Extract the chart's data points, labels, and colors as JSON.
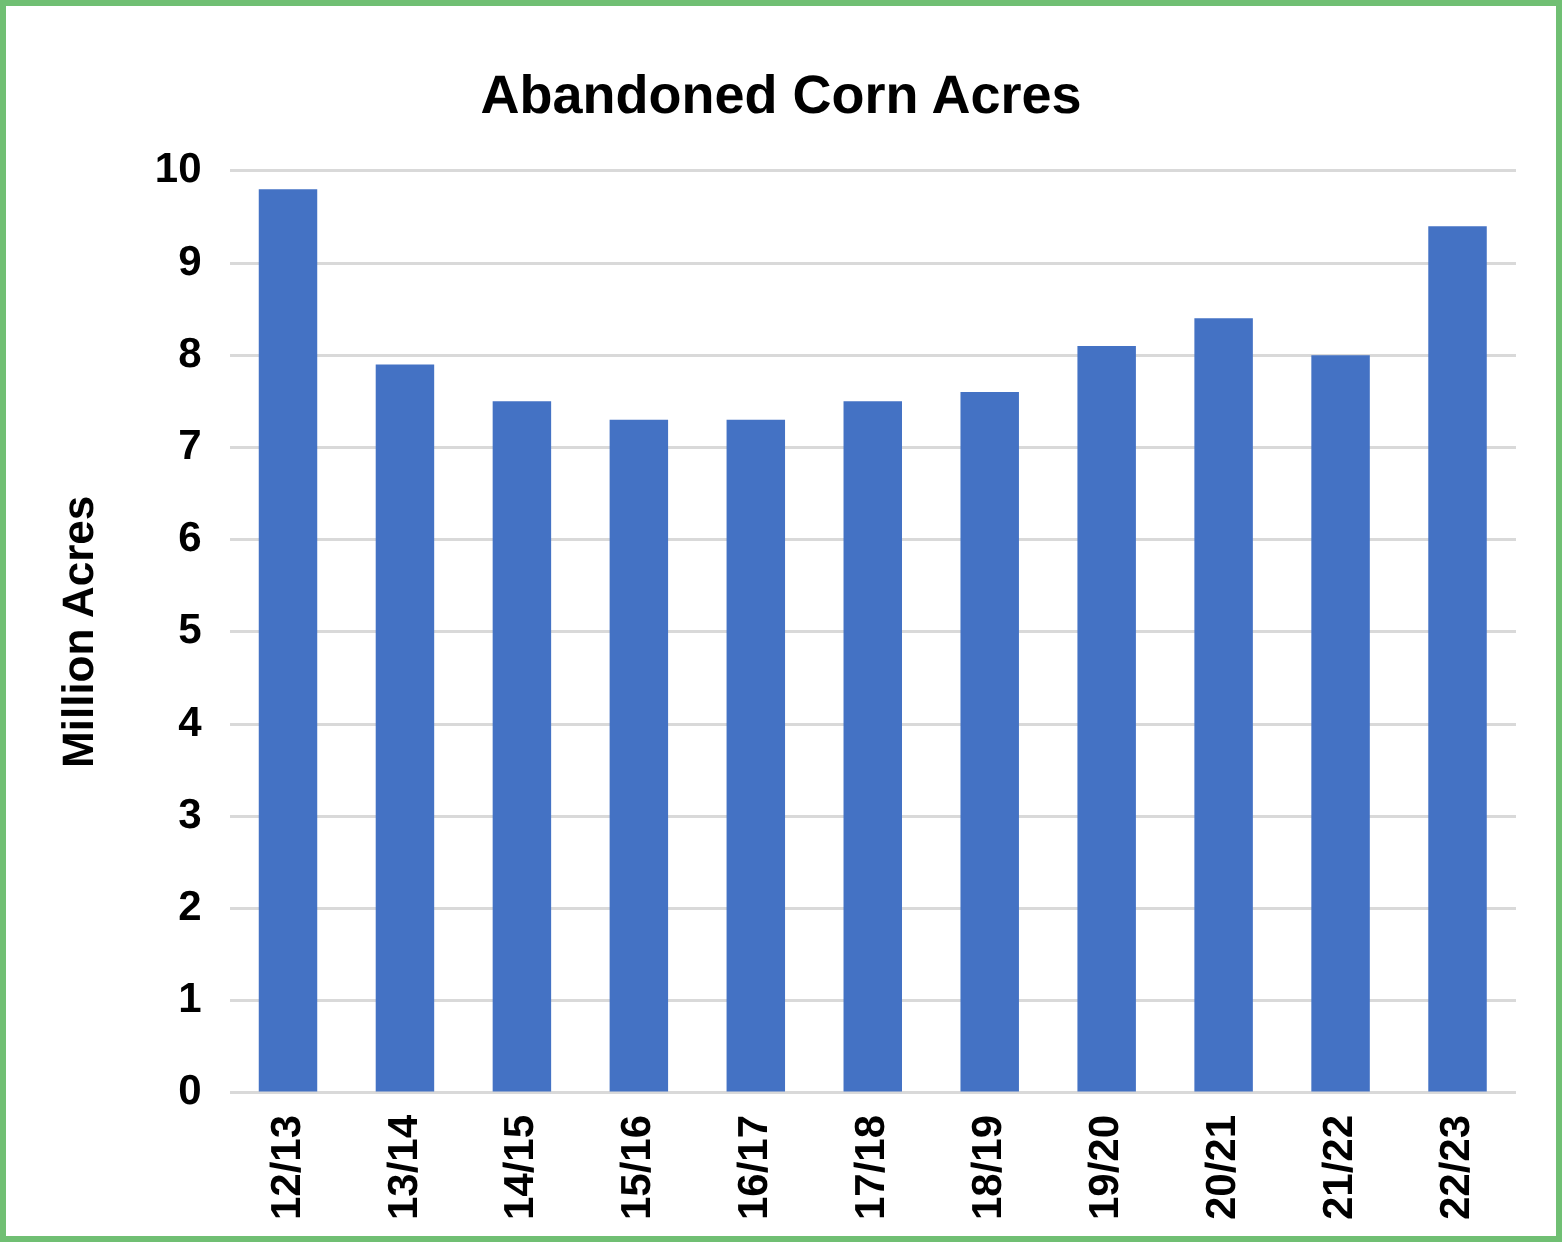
{
  "chart_data": {
    "type": "bar",
    "title": "Abandoned Corn Acres",
    "ylabel": "Million Acres",
    "categories": [
      "12/13",
      "13/14",
      "14/15",
      "15/16",
      "16/17",
      "17/18",
      "18/19",
      "19/20",
      "20/21",
      "21/22",
      "22/23"
    ],
    "values": [
      9.8,
      7.9,
      7.5,
      7.3,
      7.3,
      7.5,
      7.6,
      8.1,
      8.4,
      8.0,
      9.4
    ],
    "color": "#4472c4",
    "ylim": [
      0,
      10
    ],
    "yticks": [
      0,
      1,
      2,
      3,
      4,
      5,
      6,
      7,
      8,
      9,
      10
    ],
    "grid": "y",
    "legend": false
  }
}
